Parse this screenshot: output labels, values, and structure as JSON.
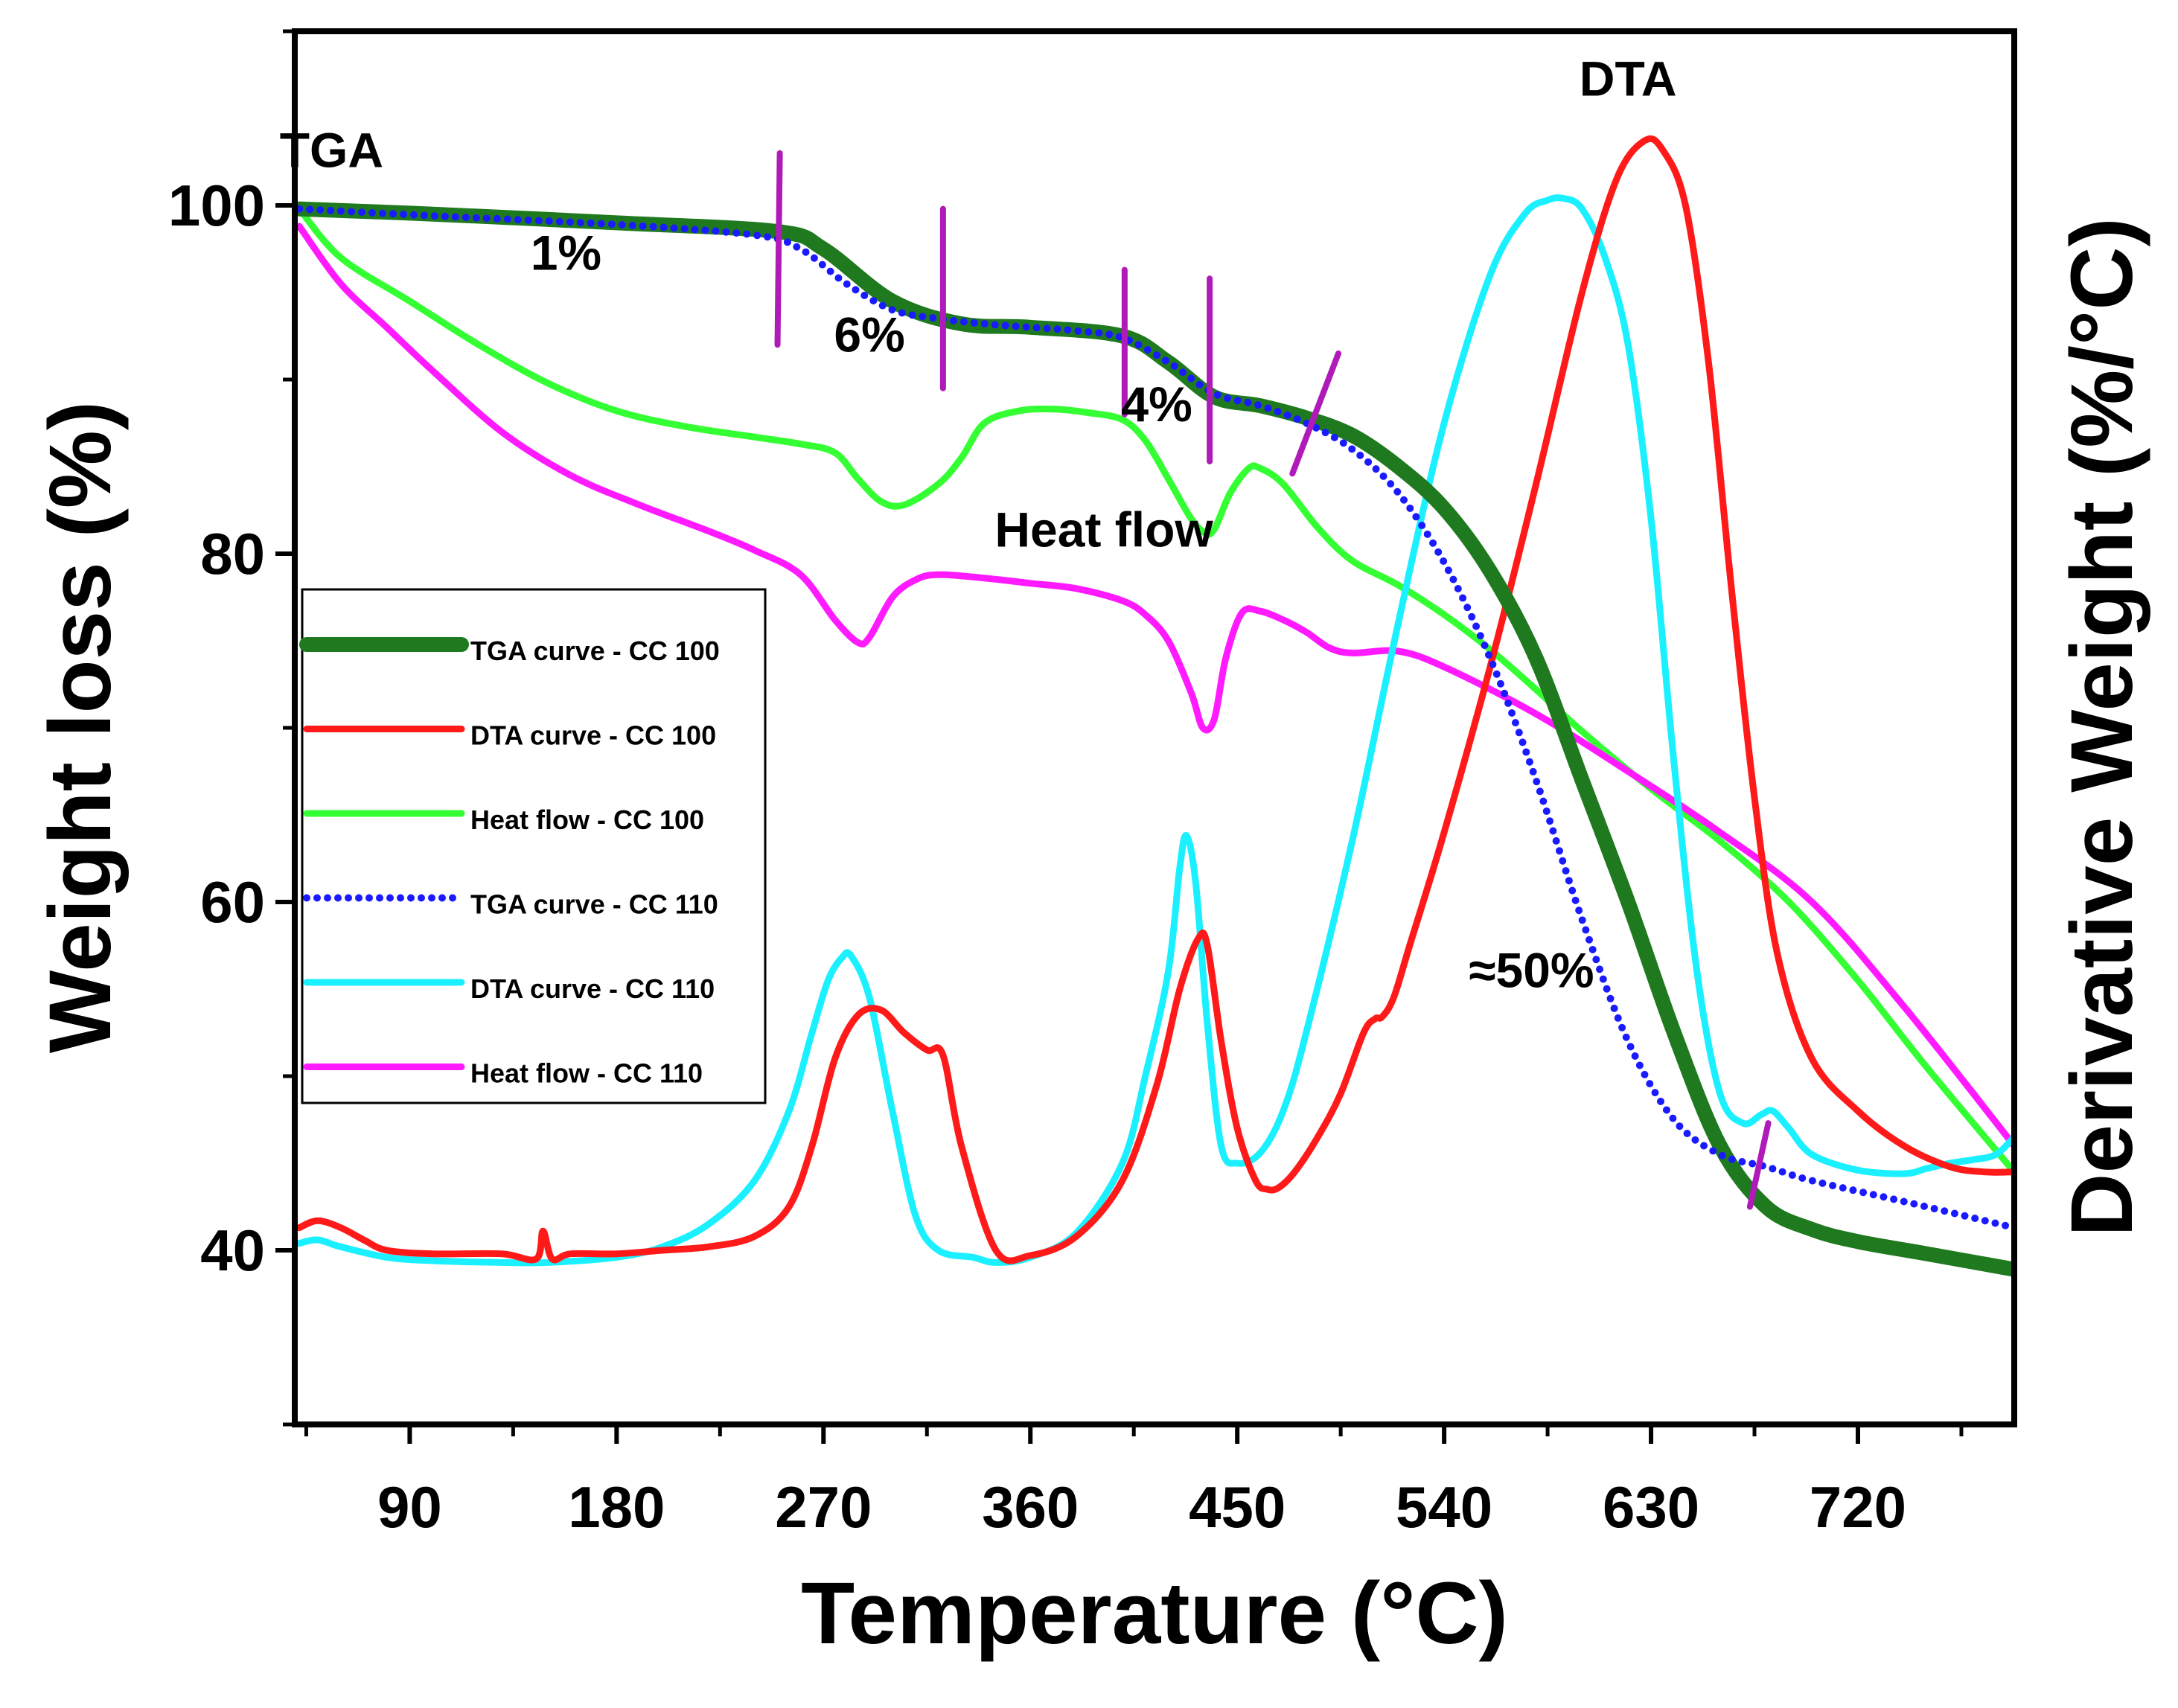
{
  "chart_data": {
    "type": "line",
    "xlabel": "Temperature (°C)",
    "ylabel": "Weight loss (%)",
    "y2label": "Derivative Weight (%/°C)",
    "xlim": [
      40,
      788
    ],
    "ylim": [
      30,
      110
    ],
    "xticks": [
      90,
      180,
      270,
      360,
      450,
      540,
      630,
      720
    ],
    "yticks": [
      40,
      60,
      80,
      100
    ],
    "grid": false,
    "legend_position": "middle-left",
    "series": [
      {
        "name": "TGA curve - CC 100",
        "color": "#1f7a1f",
        "style": "solid-thick",
        "x": [
          42,
          100,
          180,
          250,
          270,
          300,
          330,
          360,
          400,
          420,
          440,
          460,
          480,
          500,
          520,
          540,
          560,
          580,
          600,
          620,
          640,
          660,
          680,
          700,
          720,
          750,
          788
        ],
        "values": [
          99.8,
          99.5,
          99,
          98.5,
          97.5,
          94.5,
          93.2,
          93,
          92.5,
          91,
          89,
          88.5,
          87.8,
          86.8,
          85,
          82.6,
          79,
          74,
          67,
          60,
          52.5,
          46,
          42.5,
          41.2,
          40.5,
          39.8,
          38.9
        ]
      },
      {
        "name": "DTA curve - CC 100",
        "color": "#ff1a1a",
        "style": "solid",
        "x": [
          42,
          50,
          60,
          70,
          80,
          100,
          130,
          145,
          148,
          152,
          160,
          180,
          200,
          220,
          240,
          255,
          265,
          275,
          285,
          295,
          305,
          315,
          322,
          330,
          345,
          360,
          380,
          400,
          415,
          425,
          433,
          437,
          443,
          450,
          458,
          463,
          468,
          475,
          485,
          495,
          505,
          510,
          513,
          518,
          525,
          540,
          560,
          580,
          600,
          615,
          627,
          635,
          645,
          655,
          665,
          675,
          685,
          700,
          720,
          740,
          760,
          775,
          788
        ],
        "values": [
          41.3,
          41.7,
          41.3,
          40.6,
          40,
          39.8,
          39.8,
          39.5,
          41.1,
          39.5,
          39.8,
          39.8,
          40,
          40.2,
          40.8,
          42.5,
          46,
          51,
          53.5,
          53.8,
          52.5,
          51.5,
          51.2,
          46,
          40,
          39.7,
          40.8,
          44,
          49.5,
          55,
          57.9,
          57.5,
          52,
          47,
          44,
          43.5,
          43.6,
          44.5,
          46.5,
          49,
          52.5,
          53.3,
          53.4,
          54.5,
          57.5,
          64,
          73.5,
          84,
          95,
          101.5,
          103.7,
          103.2,
          100,
          91,
          78,
          66,
          57,
          51,
          48,
          46,
          44.8,
          44.5,
          44.5
        ]
      },
      {
        "name": "Heat flow - CC 100",
        "color": "#33ff33",
        "style": "solid",
        "x": [
          42,
          60,
          90,
          120,
          150,
          180,
          210,
          240,
          260,
          275,
          285,
          295,
          305,
          320,
          330,
          340,
          355,
          370,
          385,
          400,
          410,
          420,
          430,
          436,
          440,
          447,
          455,
          460,
          470,
          485,
          500,
          520,
          540,
          560,
          580,
          600,
          630,
          660,
          690,
          720,
          750,
          788
        ],
        "values": [
          99.8,
          97,
          94.5,
          92,
          89.8,
          88.2,
          87.3,
          86.7,
          86.3,
          85.8,
          84.3,
          83,
          82.8,
          84,
          85.5,
          87.5,
          88.2,
          88.3,
          88.1,
          87.7,
          86.5,
          84.3,
          82,
          81.2,
          81.4,
          83.5,
          84.9,
          84.9,
          84,
          81.5,
          79.6,
          78.2,
          76.5,
          74.5,
          72.2,
          69.8,
          66.5,
          63.5,
          60,
          55.5,
          50.5,
          44.5
        ]
      },
      {
        "name": "TGA curve - CC 110",
        "color": "#1a1aff",
        "style": "dotted",
        "x": [
          42,
          100,
          180,
          240,
          260,
          280,
          300,
          320,
          340,
          360,
          380,
          400,
          420,
          440,
          460,
          480,
          500,
          520,
          540,
          560,
          580,
          600,
          620,
          640,
          660,
          680,
          700,
          740,
          788
        ],
        "values": [
          99.8,
          99.4,
          98.9,
          98.3,
          97.5,
          95.5,
          94,
          93.5,
          93.2,
          93,
          92.8,
          92.4,
          91,
          89.2,
          88.5,
          87.5,
          86,
          83.5,
          79.5,
          74,
          67,
          59,
          52,
          47.5,
          45.5,
          44.8,
          44,
          42.8,
          41.3
        ]
      },
      {
        "name": "DTA curve - CC 110",
        "color": "#1af0ff",
        "style": "solid",
        "x": [
          42,
          50,
          60,
          80,
          100,
          130,
          150,
          180,
          200,
          220,
          240,
          255,
          265,
          272,
          278,
          282,
          290,
          300,
          310,
          320,
          335,
          345,
          360,
          380,
          400,
          410,
          420,
          425,
          428,
          432,
          437,
          443,
          450,
          460,
          470,
          480,
          500,
          520,
          540,
          560,
          575,
          585,
          592,
          600,
          610,
          620,
          630,
          640,
          650,
          660,
          670,
          678,
          683,
          690,
          700,
          720,
          740,
          750,
          760,
          770,
          780,
          788
        ],
        "values": [
          40.4,
          40.6,
          40.2,
          39.6,
          39.4,
          39.3,
          39.3,
          39.6,
          40.2,
          41.5,
          44,
          48,
          52.5,
          55.5,
          56.8,
          56.9,
          54.5,
          48,
          42,
          40,
          39.6,
          39.3,
          39.6,
          41,
          45,
          50,
          56,
          62,
          63.8,
          61,
          53,
          46,
          45,
          45.6,
          48,
          52.5,
          63.5,
          76,
          87.5,
          96,
          99.5,
          100.3,
          100.4,
          99.8,
          97,
          92,
          82,
          68,
          56,
          49,
          47.3,
          47.8,
          48,
          47,
          45.5,
          44.6,
          44.4,
          44.7,
          45,
          45.2,
          45.5,
          46.5
        ]
      },
      {
        "name": "Heat flow - CC 110",
        "color": "#ff1aff",
        "style": "solid",
        "x": [
          42,
          60,
          80,
          100,
          130,
          160,
          190,
          220,
          240,
          260,
          275,
          285,
          290,
          300,
          310,
          320,
          340,
          360,
          380,
          400,
          410,
          420,
          430,
          435,
          440,
          445,
          452,
          460,
          470,
          480,
          490,
          500,
          520,
          540,
          580,
          620,
          660,
          700,
          740,
          788
        ],
        "values": [
          98.8,
          95.5,
          93,
          90.5,
          87,
          84.5,
          82.8,
          81.3,
          80.2,
          78.8,
          76.2,
          74.9,
          75.2,
          77.5,
          78.5,
          78.8,
          78.6,
          78.3,
          78,
          77.3,
          76.5,
          75,
          72,
          70,
          70.5,
          74,
          76.6,
          76.7,
          76.2,
          75.5,
          74.6,
          74.3,
          74.4,
          73.5,
          70.8,
          67.5,
          64,
          60,
          54,
          46
        ]
      }
    ],
    "annotations": [
      {
        "text": "TGA",
        "x": 56,
        "y": 102.2
      },
      {
        "text": "1%",
        "x": 158,
        "y": 96.3
      },
      {
        "text": "6%",
        "x": 290,
        "y": 91.6
      },
      {
        "text": "4%",
        "x": 415,
        "y": 87.6
      },
      {
        "text": "Heat flow",
        "x": 392,
        "y": 80.4
      },
      {
        "text": "DTA",
        "x": 620,
        "y": 106.3
      },
      {
        "text": "≈50%",
        "x": 578,
        "y": 55.1
      }
    ],
    "markers": [
      {
        "x1": 250,
        "y1": 92,
        "x2": 251,
        "y2": 103
      },
      {
        "x1": 322,
        "y1": 89.5,
        "x2": 322,
        "y2": 99.8
      },
      {
        "x1": 401,
        "y1": 88,
        "x2": 401,
        "y2": 96.3
      },
      {
        "x1": 438,
        "y1": 85.3,
        "x2": 438,
        "y2": 95.8
      },
      {
        "x1": 474,
        "y1": 84.6,
        "x2": 494,
        "y2": 91.5
      },
      {
        "x1": 673,
        "y1": 42.5,
        "x2": 681,
        "y2": 47.3
      }
    ],
    "marker_color": "#b01ab8"
  }
}
